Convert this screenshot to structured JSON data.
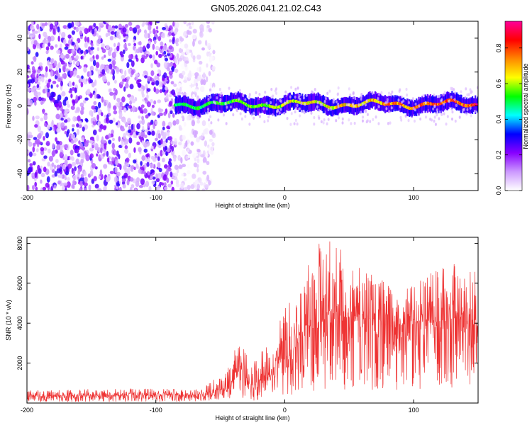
{
  "title": "GN05.2026.041.21.02.C43",
  "chart_data": [
    {
      "type": "heatmap",
      "name": "spectrogram",
      "xlabel": "Height of straight line (km)",
      "ylabel": "Frequency (Hz)",
      "xlim": [
        -200,
        150
      ],
      "ylim": [
        -50,
        50
      ],
      "xticks": [
        -200,
        -100,
        0,
        100
      ],
      "xtick_labels": [
        "-200",
        "-100",
        "0",
        "100"
      ],
      "yticks": [
        -40,
        -20,
        0,
        20,
        40
      ],
      "ytick_labels": [
        "-40",
        "-20",
        "0",
        "20",
        "40"
      ],
      "colorbar": {
        "label": "Normalized spectral amplitude",
        "range": [
          0,
          0.95
        ],
        "ticks": [
          0.0,
          0.2,
          0.4,
          0.6,
          0.8
        ],
        "tick_labels": [
          "0.0",
          "0.2",
          "0.4",
          "0.6",
          "0.8"
        ],
        "colors": [
          "#ffffff",
          "#cc99ff",
          "#8800ff",
          "#0000ff",
          "#00ffff",
          "#00ff00",
          "#ffff00",
          "#ff8800",
          "#ff0000",
          "#ff0099"
        ]
      },
      "features": [
        {
          "region": "noise",
          "x_range": [
            -200,
            -85
          ],
          "y_range": [
            -50,
            50
          ],
          "amplitude_range": [
            0.05,
            0.3
          ]
        },
        {
          "region": "faint noise",
          "x_range": [
            -85,
            -55
          ],
          "y_range": [
            -50,
            50
          ],
          "amplitude_range": [
            0.0,
            0.1
          ]
        },
        {
          "region": "signal band",
          "x_range": [
            -85,
            150
          ],
          "center_hz": 1,
          "halfwidth_hz": 4,
          "amplitude_range": [
            0.3,
            0.9
          ]
        }
      ]
    },
    {
      "type": "line",
      "name": "snr",
      "xlabel": "Height of straight line (km)",
      "ylabel": "SNR (10 * v/v)",
      "xlim": [
        -200,
        150
      ],
      "ylim": [
        0,
        8300
      ],
      "xticks": [
        -200,
        -100,
        0,
        100
      ],
      "xtick_labels": [
        "-200",
        "-100",
        "0",
        "100"
      ],
      "yticks": [
        2000,
        4000,
        6000,
        8000
      ],
      "ytick_labels": [
        "2000",
        "4000",
        "6000",
        "8000"
      ],
      "color": "#ee3333",
      "envelope": {
        "x": [
          -200,
          -150,
          -100,
          -65,
          -55,
          -45,
          -35,
          -30,
          -25,
          -15,
          -5,
          5,
          15,
          25,
          35,
          50,
          70,
          90,
          110,
          130,
          140,
          150
        ],
        "mean": [
          350,
          380,
          400,
          420,
          650,
          650,
          2000,
          1200,
          800,
          1400,
          2000,
          2600,
          3500,
          4200,
          4400,
          4300,
          4200,
          3900,
          4000,
          4200,
          4200,
          3800
        ],
        "peak": [
          650,
          700,
          720,
          700,
          1200,
          1600,
          3300,
          2600,
          2000,
          3000,
          4300,
          5200,
          6500,
          8000,
          8200,
          7400,
          6400,
          5500,
          6400,
          7200,
          7000,
          6700
        ]
      }
    }
  ]
}
